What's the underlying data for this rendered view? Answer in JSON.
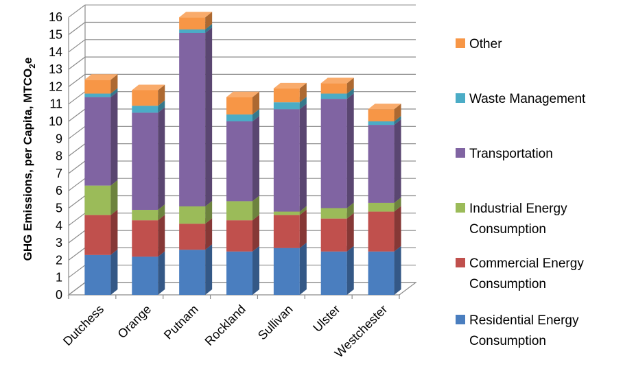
{
  "chart_data": {
    "type": "bar",
    "stacked": true,
    "three_d": true,
    "title": "",
    "xlabel": "",
    "ylabel": "GHG Emissions, per Capita, MTCO",
    "ylabel_subscript": "2",
    "ylabel_suffix": "e",
    "ylim": [
      0,
      16
    ],
    "yticks": [
      "0",
      "1",
      "2",
      "3",
      "4",
      "5",
      "6",
      "7",
      "8",
      "9",
      "10",
      "11",
      "12",
      "13",
      "14",
      "15",
      "16"
    ],
    "grid": true,
    "legend_position": "right",
    "categories": [
      "Dutchess",
      "Orange",
      "Putnam",
      "Rockland",
      "Sullivan",
      "Ulster",
      "Westchester"
    ],
    "series": [
      {
        "name": "Residential Energy Consumption",
        "legend_lines": [
          "Residential Energy",
          "Consumption"
        ],
        "color": "#4a7ebf",
        "values": [
          2.3,
          2.2,
          2.6,
          2.5,
          2.7,
          2.5,
          2.5
        ]
      },
      {
        "name": "Commercial Energy Consumption",
        "legend_lines": [
          "Commercial Energy",
          "Consumption"
        ],
        "color": "#c0504d",
        "values": [
          2.3,
          2.1,
          1.5,
          1.8,
          1.9,
          1.9,
          2.3
        ]
      },
      {
        "name": "Industrial Energy Consumption",
        "legend_lines": [
          "Industrial Energy",
          "Consumption"
        ],
        "color": "#9bbb59",
        "values": [
          1.7,
          0.6,
          1.0,
          1.1,
          0.2,
          0.6,
          0.5
        ]
      },
      {
        "name": "Transportation",
        "legend_lines": [
          "Transportation"
        ],
        "color": "#8064a2",
        "values": [
          5.1,
          5.6,
          10.0,
          4.6,
          5.9,
          6.3,
          4.5
        ]
      },
      {
        "name": "Waste Management",
        "legend_lines": [
          "Waste Management"
        ],
        "color": "#4bacc6",
        "values": [
          0.2,
          0.4,
          0.2,
          0.4,
          0.4,
          0.3,
          0.2
        ]
      },
      {
        "name": "Other",
        "legend_lines": [
          "Other"
        ],
        "color": "#f79646",
        "values": [
          0.8,
          0.9,
          0.7,
          1.0,
          0.8,
          0.6,
          0.7
        ]
      }
    ]
  }
}
